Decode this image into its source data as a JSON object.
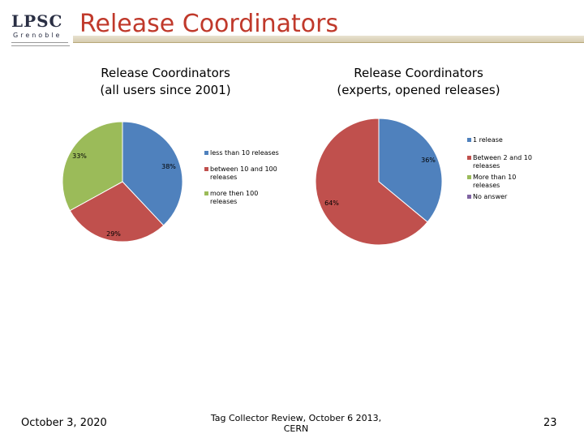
{
  "slide": {
    "title": "Release Coordinators",
    "logo": {
      "name": "LPSC",
      "city": "Grenoble"
    },
    "footer": {
      "date": "October 3, 2020",
      "center": "Tag Collector Review, October 6 2013, CERN",
      "page": "23"
    }
  },
  "chart_data": [
    {
      "type": "pie",
      "title": [
        "Release Coordinators",
        "(all users since 2001)"
      ],
      "categories": [
        "less than 10 releases",
        "between 10 and 100 releases",
        "more then 100 releases"
      ],
      "values": [
        38,
        29,
        33
      ],
      "labels": [
        "38%",
        "29%",
        "33%"
      ],
      "colors": [
        "#4f81bd",
        "#c0504d",
        "#9bbb59"
      ],
      "legend_position": "right"
    },
    {
      "type": "pie",
      "title": [
        "Release Coordinators",
        "(experts, opened releases)"
      ],
      "categories": [
        "1 release",
        "Between 2 and 10 releases",
        "More than 10 releases",
        "No answer"
      ],
      "values": [
        36,
        64,
        0,
        0
      ],
      "labels": [
        "36%",
        "64%"
      ],
      "colors": [
        "#4f81bd",
        "#c0504d",
        "#9bbb59",
        "#8064a2"
      ],
      "legend_position": "right"
    }
  ]
}
